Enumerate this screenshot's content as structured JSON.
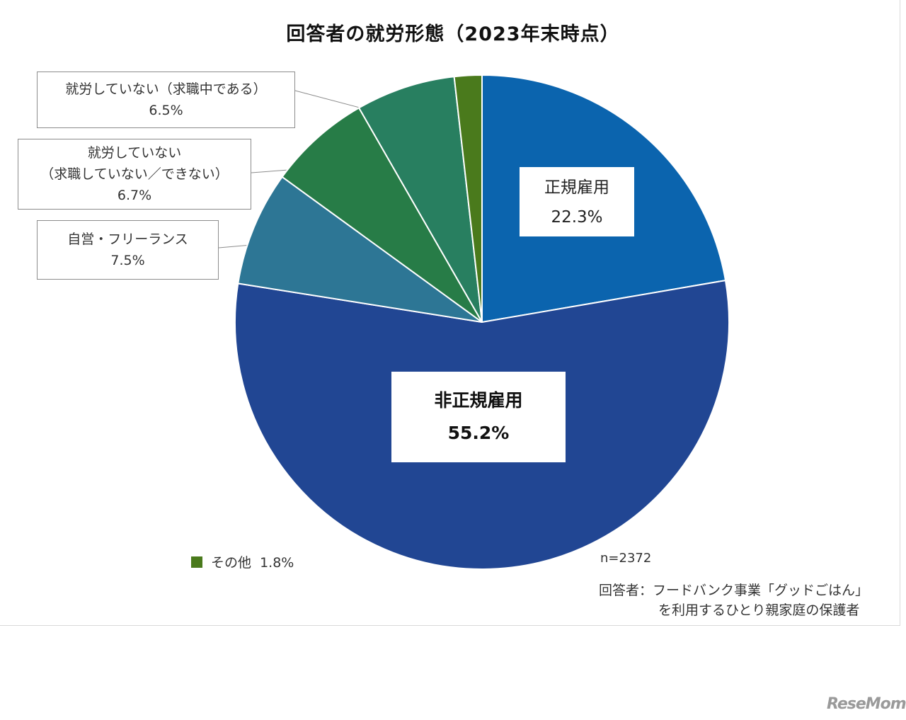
{
  "chart_data": {
    "type": "pie",
    "title": "回答者の就労形態（2023年末時点）",
    "slices": [
      {
        "label": "正規雇用",
        "value": 22.3,
        "display": "22.3%",
        "color": "#0b64ae"
      },
      {
        "label": "非正規雇用",
        "value": 55.2,
        "display": "55.2%",
        "color": "#214693"
      },
      {
        "label": "自営・フリーランス",
        "value": 7.5,
        "display": "7.5%",
        "color": "#2d7695"
      },
      {
        "label_line1": "就労していない",
        "label_line2": "（求職していない／できない）",
        "value": 6.7,
        "display": "6.7%",
        "color": "#277c47"
      },
      {
        "label": "就労していない（求職中である）",
        "value": 6.5,
        "display": "6.5%",
        "color": "#287f60"
      },
      {
        "label": "その他",
        "value": 1.8,
        "display": "1.8%",
        "color": "#4a7a1c"
      }
    ],
    "sample_size": "n=2372",
    "respondents_line1": "回答者：フードバンク事業「グッドごはん」",
    "respondents_line2": "を利用するひとり親家庭の保護者"
  },
  "legend_other": "その他  1.8%",
  "watermark": "ReseMom"
}
